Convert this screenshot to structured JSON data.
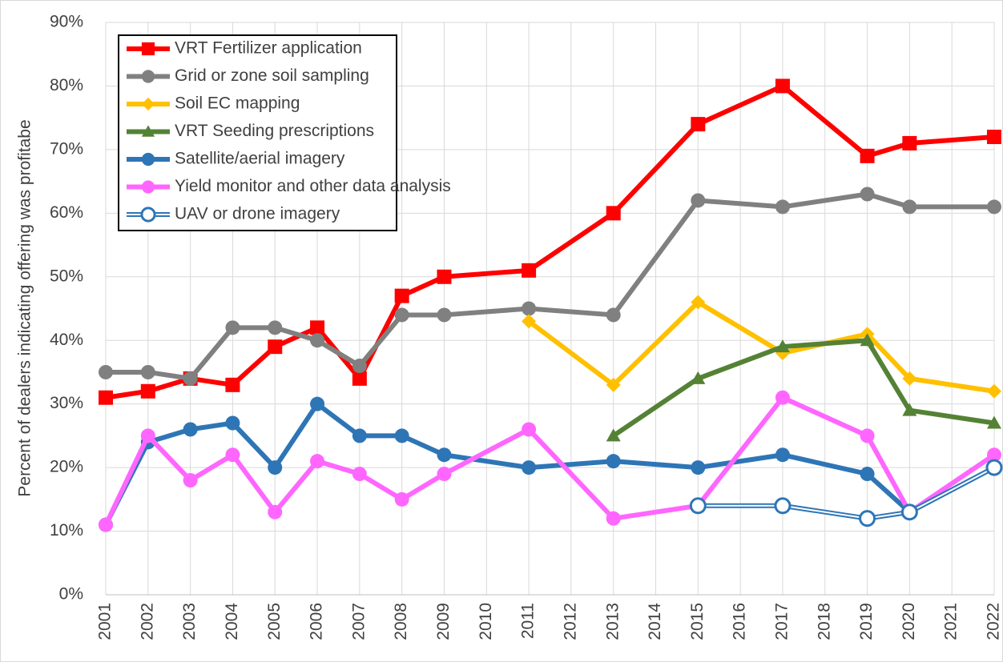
{
  "chart_data": {
    "type": "line",
    "y_label": "Percent of dealers indicating offering was profitabe",
    "x": [
      2001,
      2002,
      2003,
      2004,
      2005,
      2006,
      2007,
      2008,
      2009,
      2011,
      2013,
      2015,
      2017,
      2019,
      2020,
      2022
    ],
    "xlim": [
      2001,
      2022
    ],
    "xticks": [
      2001,
      2002,
      2003,
      2004,
      2005,
      2006,
      2007,
      2008,
      2009,
      2010,
      2011,
      2012,
      2013,
      2014,
      2015,
      2016,
      2017,
      2018,
      2019,
      2020,
      2021,
      2022
    ],
    "ylim": [
      0,
      90
    ],
    "yticks": [
      {
        "value": 0,
        "label": "0%"
      },
      {
        "value": 10,
        "label": "10%"
      },
      {
        "value": 20,
        "label": "20%"
      },
      {
        "value": 30,
        "label": "30%"
      },
      {
        "value": 40,
        "label": "40%"
      },
      {
        "value": 50,
        "label": "50%"
      },
      {
        "value": 60,
        "label": "60%"
      },
      {
        "value": 70,
        "label": "70%"
      },
      {
        "value": 80,
        "label": "80%"
      },
      {
        "value": 90,
        "label": "90%"
      }
    ],
    "grid": true,
    "legend": "upper left",
    "series": [
      {
        "name": "VRT Fertilizer application",
        "color": "#ff0000",
        "marker": "square",
        "values": [
          31,
          32,
          34,
          33,
          39,
          42,
          34,
          47,
          50,
          51,
          60,
          74,
          80,
          69,
          71,
          72
        ]
      },
      {
        "name": "Grid or zone soil sampling",
        "color": "#808080",
        "marker": "circle",
        "values": [
          35,
          35,
          34,
          42,
          42,
          40,
          36,
          44,
          44,
          45,
          44,
          62,
          61,
          63,
          61,
          61
        ]
      },
      {
        "name": "Soil EC mapping",
        "color": "#ffc000",
        "marker": "diamond",
        "values": [
          null,
          null,
          null,
          null,
          null,
          null,
          null,
          null,
          null,
          43,
          33,
          46,
          38,
          41,
          34,
          32
        ]
      },
      {
        "name": "VRT Seeding prescriptions",
        "color": "#548235",
        "marker": "triangle",
        "values": [
          null,
          null,
          null,
          null,
          null,
          null,
          null,
          null,
          null,
          null,
          25,
          34,
          39,
          40,
          29,
          27
        ]
      },
      {
        "name": "Satellite/aerial imagery",
        "color": "#2e75b6",
        "marker": "circle",
        "values": [
          11,
          24,
          26,
          27,
          20,
          30,
          25,
          25,
          22,
          20,
          21,
          20,
          22,
          19,
          13,
          20
        ]
      },
      {
        "name": "Yield monitor and other data analysis",
        "color": "#ff66ff",
        "marker": "circle",
        "values": [
          11,
          25,
          18,
          22,
          13,
          21,
          19,
          15,
          19,
          26,
          12,
          14,
          31,
          25,
          13,
          22
        ]
      },
      {
        "name": "UAV or drone imagery",
        "color": "#2e75b6",
        "marker": "open-circle",
        "values": [
          null,
          null,
          null,
          null,
          null,
          null,
          null,
          null,
          null,
          null,
          null,
          14,
          14,
          12,
          13,
          20
        ]
      }
    ]
  }
}
